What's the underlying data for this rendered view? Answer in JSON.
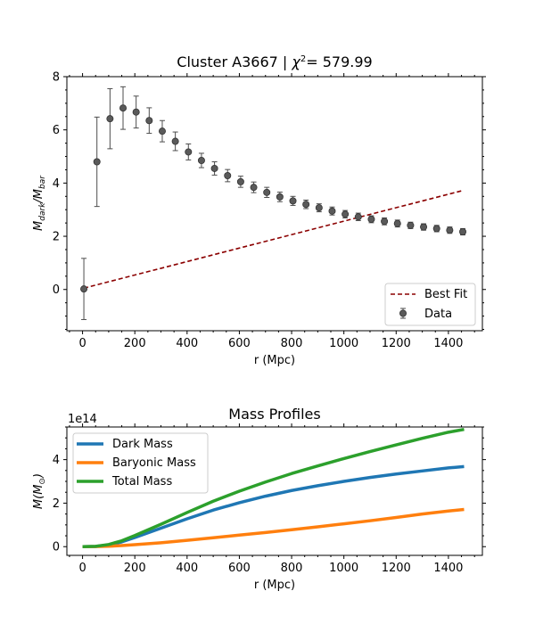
{
  "chart_data": [
    {
      "type": "scatter",
      "title": "Cluster A3667 | χ²= 579.99",
      "title_main": "Cluster A3667 | ",
      "title_chi": "χ",
      "title_sup": "2",
      "title_val": "= 579.99",
      "xlabel": "r (Mpc)",
      "ylabel_main": "M",
      "ylabel_sub1": "dark",
      "ylabel_sep": "/M",
      "ylabel_sub2": "bar",
      "xlim": [
        -60,
        1530
      ],
      "ylim": [
        -1.55,
        8.0
      ],
      "xticks": [
        0,
        200,
        400,
        600,
        800,
        1000,
        1200,
        1400
      ],
      "yticks": [
        0,
        2,
        4,
        6,
        8
      ],
      "legend_position": "lower-right",
      "series": [
        {
          "name": "Data",
          "kind": "errorbar",
          "color": "#4d4d4d",
          "x": [
            5,
            55,
            105,
            155,
            205,
            255,
            305,
            355,
            405,
            455,
            505,
            555,
            605,
            655,
            705,
            755,
            805,
            855,
            905,
            955,
            1005,
            1055,
            1105,
            1155,
            1205,
            1255,
            1305,
            1355,
            1405,
            1455
          ],
          "y": [
            0.02,
            4.8,
            6.42,
            6.82,
            6.67,
            6.35,
            5.95,
            5.57,
            5.17,
            4.85,
            4.55,
            4.28,
            4.05,
            3.84,
            3.65,
            3.48,
            3.33,
            3.2,
            3.07,
            2.95,
            2.83,
            2.73,
            2.64,
            2.56,
            2.48,
            2.41,
            2.35,
            2.29,
            2.23,
            2.17
          ],
          "yerr": [
            1.15,
            1.68,
            1.13,
            0.8,
            0.6,
            0.48,
            0.4,
            0.35,
            0.3,
            0.27,
            0.25,
            0.23,
            0.21,
            0.2,
            0.19,
            0.18,
            0.17,
            0.16,
            0.15,
            0.15,
            0.14,
            0.14,
            0.13,
            0.13,
            0.13,
            0.12,
            0.12,
            0.12,
            0.12,
            0.12
          ]
        },
        {
          "name": "Best Fit",
          "kind": "line",
          "color": "#8b0000",
          "style": "dashed",
          "x": [
            5,
            1455
          ],
          "y": [
            0.05,
            3.72
          ]
        }
      ]
    },
    {
      "type": "line",
      "title": "Mass Profiles",
      "xlabel": "r (Mpc)",
      "ylabel_main": "M(M",
      "ylabel_sub": "⊙",
      "ylabel_end": ")",
      "offset_text": "1e14",
      "xlim": [
        -60,
        1530
      ],
      "ylim": [
        -0.4,
        5.5
      ],
      "xticks": [
        0,
        200,
        400,
        600,
        800,
        1000,
        1200,
        1400
      ],
      "yticks": [
        0,
        2,
        4
      ],
      "legend_position": "upper-left",
      "series": [
        {
          "name": "Dark Mass",
          "color": "#1f77b4",
          "x": [
            0,
            50,
            100,
            150,
            200,
            300,
            400,
            500,
            600,
            700,
            800,
            900,
            1000,
            1100,
            1200,
            1300,
            1400,
            1460
          ],
          "y": [
            0,
            0.01,
            0.08,
            0.22,
            0.42,
            0.85,
            1.28,
            1.68,
            2.02,
            2.32,
            2.58,
            2.8,
            3.0,
            3.18,
            3.34,
            3.48,
            3.62,
            3.68
          ]
        },
        {
          "name": "Baryonic Mass",
          "color": "#ff7f0e",
          "x": [
            0,
            50,
            100,
            150,
            200,
            300,
            400,
            500,
            600,
            700,
            800,
            900,
            1000,
            1100,
            1200,
            1300,
            1400,
            1460
          ],
          "y": [
            0,
            0.005,
            0.02,
            0.05,
            0.09,
            0.18,
            0.29,
            0.41,
            0.53,
            0.65,
            0.78,
            0.91,
            1.05,
            1.19,
            1.34,
            1.5,
            1.64,
            1.71
          ]
        },
        {
          "name": "Total Mass",
          "color": "#2ca02c",
          "x": [
            0,
            50,
            100,
            150,
            200,
            300,
            400,
            500,
            600,
            700,
            800,
            900,
            1000,
            1100,
            1200,
            1300,
            1400,
            1460
          ],
          "y": [
            0,
            0.015,
            0.1,
            0.27,
            0.51,
            1.03,
            1.57,
            2.09,
            2.55,
            2.97,
            3.36,
            3.71,
            4.05,
            4.37,
            4.68,
            4.98,
            5.26,
            5.39
          ]
        }
      ]
    }
  ]
}
